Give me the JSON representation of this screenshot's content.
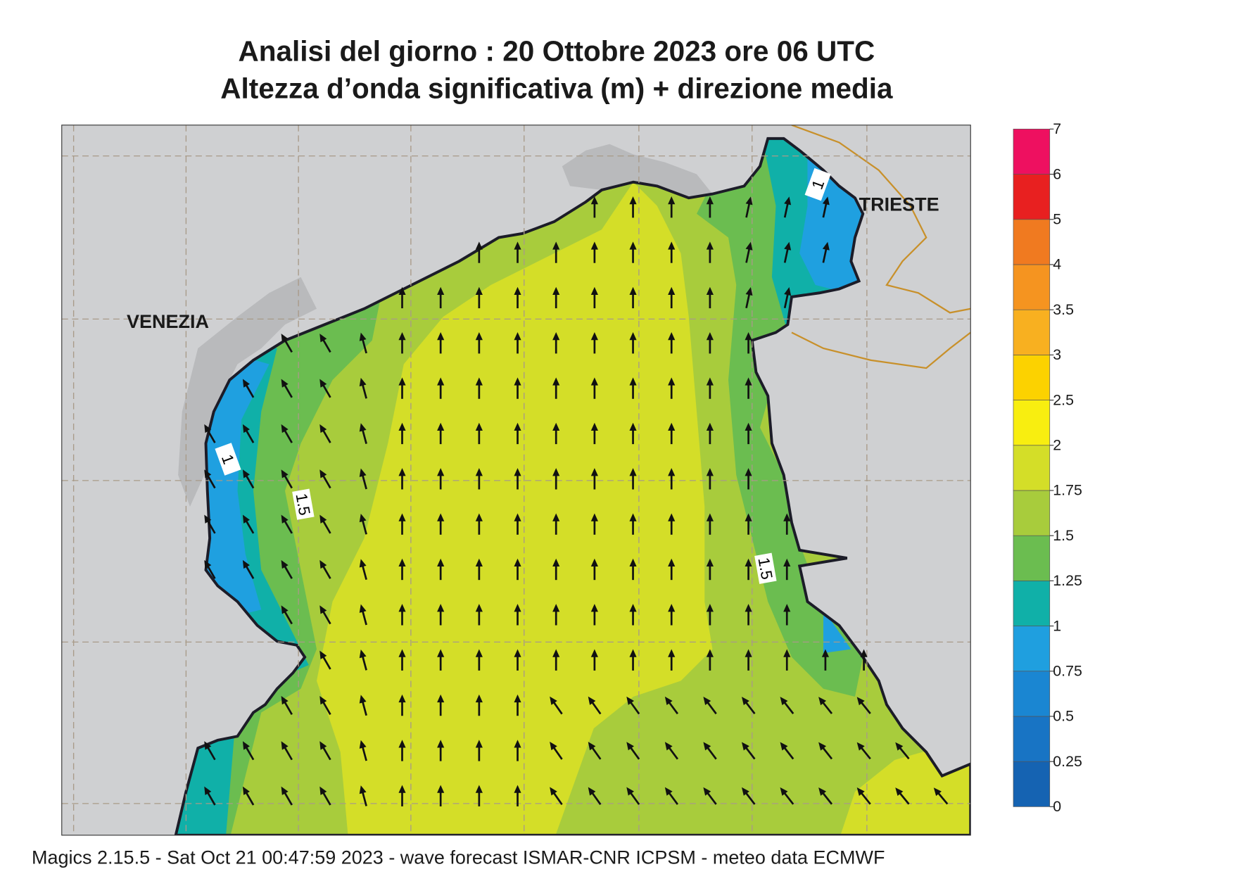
{
  "header": {
    "title": "Analisi del giorno :  20  Ottobre  2023   ore 06 UTC",
    "subtitle": "Altezza d’onda significativa (m) + direzione media"
  },
  "map": {
    "places": [
      "VENEZIA",
      "TRIESTE"
    ],
    "contour_labels": [
      1,
      1.5,
      1.5,
      1
    ]
  },
  "colorbar": {
    "ticks": [
      0,
      0.25,
      0.5,
      0.75,
      1,
      1.25,
      1.5,
      1.75,
      2,
      2.5,
      3,
      3.5,
      4,
      5,
      6,
      7
    ],
    "colors": [
      "#1563b2",
      "#1874c4",
      "#1a86d2",
      "#1f9fdf",
      "#10b0a8",
      "#6bbd50",
      "#a8cc3c",
      "#d4de28",
      "#f8ee10",
      "#fcd200",
      "#f8b020",
      "#f59420",
      "#f07a20",
      "#e82020",
      "#ee1060"
    ]
  },
  "footer": "Magics 2.15.5 - Sat Oct 21 00:47:59 2023 - wave forecast  ISMAR-CNR  ICPSM - meteo data   ECMWF"
}
